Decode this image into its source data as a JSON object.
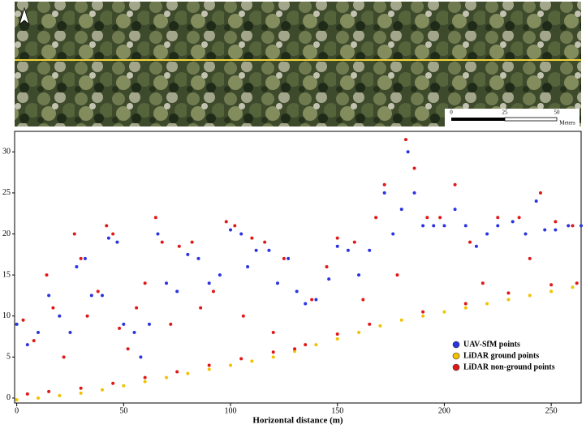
{
  "image": {
    "scale_labels": [
      "0",
      "25",
      "50"
    ],
    "scale_unit": "Meters"
  },
  "chart_data": {
    "type": "scatter",
    "xlabel": "Horizontal distance (m)",
    "xlim": [
      -1,
      264
    ],
    "ylim": [
      -0.6,
      32.5
    ],
    "xticks": [
      0,
      50,
      100,
      150,
      200,
      250
    ],
    "yticks": [
      0,
      5,
      10,
      15,
      20,
      25,
      30
    ],
    "legend": "lower right",
    "series": [
      {
        "name": "UAV-SfM points",
        "color": "#2a34e0",
        "x": [
          0,
          5,
          10,
          15,
          20,
          25,
          28,
          32,
          35,
          40,
          43,
          47,
          50,
          55,
          58,
          62,
          66,
          70,
          75,
          80,
          85,
          90,
          95,
          100,
          105,
          108,
          112,
          118,
          122,
          127,
          131,
          135,
          140,
          146,
          150,
          155,
          160,
          165,
          172,
          176,
          180,
          183,
          186,
          190,
          195,
          200,
          205,
          210,
          215,
          220,
          225,
          232,
          238,
          243,
          247,
          252,
          258,
          264
        ],
        "values": [
          9,
          6.5,
          8,
          12.5,
          10,
          8,
          16,
          17,
          12.5,
          12.5,
          19.5,
          19,
          9,
          8,
          5,
          9,
          20,
          14,
          13,
          17.5,
          17,
          14,
          15,
          20.5,
          20,
          16,
          18,
          18,
          14,
          17,
          13,
          11.5,
          12,
          14.5,
          18.5,
          18,
          15,
          18,
          25,
          20,
          23,
          30,
          25,
          21,
          21,
          21,
          23,
          21,
          18.5,
          20,
          21,
          21.5,
          20,
          24,
          20.5,
          20.5,
          21,
          21
        ]
      },
      {
        "name": "LiDAR ground points",
        "color": "#f2c200",
        "x": [
          0,
          10,
          20,
          30,
          40,
          50,
          60,
          70,
          80,
          90,
          100,
          110,
          120,
          130,
          140,
          150,
          160,
          170,
          180,
          190,
          200,
          210,
          220,
          230,
          240,
          250,
          260
        ],
        "values": [
          -0.2,
          0,
          0.3,
          0.6,
          1,
          1.5,
          2,
          2.5,
          3,
          3.5,
          4,
          4.5,
          5,
          5.7,
          6.5,
          7.2,
          8,
          8.8,
          9.5,
          10,
          10.5,
          11,
          11.5,
          12,
          12.5,
          13,
          13.5
        ]
      },
      {
        "name": "LiDAR non-ground points",
        "color": "#e01818",
        "x": [
          3,
          8,
          14,
          17,
          22,
          27,
          30,
          33,
          38,
          42,
          45,
          48,
          52,
          56,
          60,
          65,
          68,
          72,
          76,
          82,
          86,
          92,
          98,
          102,
          106,
          110,
          116,
          120,
          125,
          130,
          138,
          145,
          150,
          158,
          162,
          168,
          172,
          178,
          182,
          186,
          192,
          198,
          205,
          212,
          218,
          225,
          235,
          240,
          245,
          252,
          260,
          5,
          15,
          30,
          45,
          60,
          75,
          90,
          105,
          120,
          135,
          150,
          165,
          190,
          210,
          230,
          250,
          262
        ],
        "values": [
          9.5,
          7,
          15,
          11,
          5,
          20,
          17,
          10,
          13,
          21,
          20,
          8.5,
          6,
          11,
          14,
          22,
          19,
          9,
          18.5,
          19,
          11,
          13,
          21.5,
          21,
          10,
          19.5,
          19,
          8,
          17,
          6,
          12,
          16,
          19.5,
          19,
          12,
          22,
          26,
          15,
          31.5,
          28,
          22,
          22,
          26,
          19,
          14,
          22,
          22,
          17,
          25,
          21.5,
          21,
          0.5,
          0.8,
          1.2,
          1.8,
          2.5,
          3.2,
          4,
          4.8,
          5.6,
          6.5,
          7.8,
          9,
          10.5,
          11.5,
          12.8,
          13.8,
          14
        ]
      }
    ]
  }
}
